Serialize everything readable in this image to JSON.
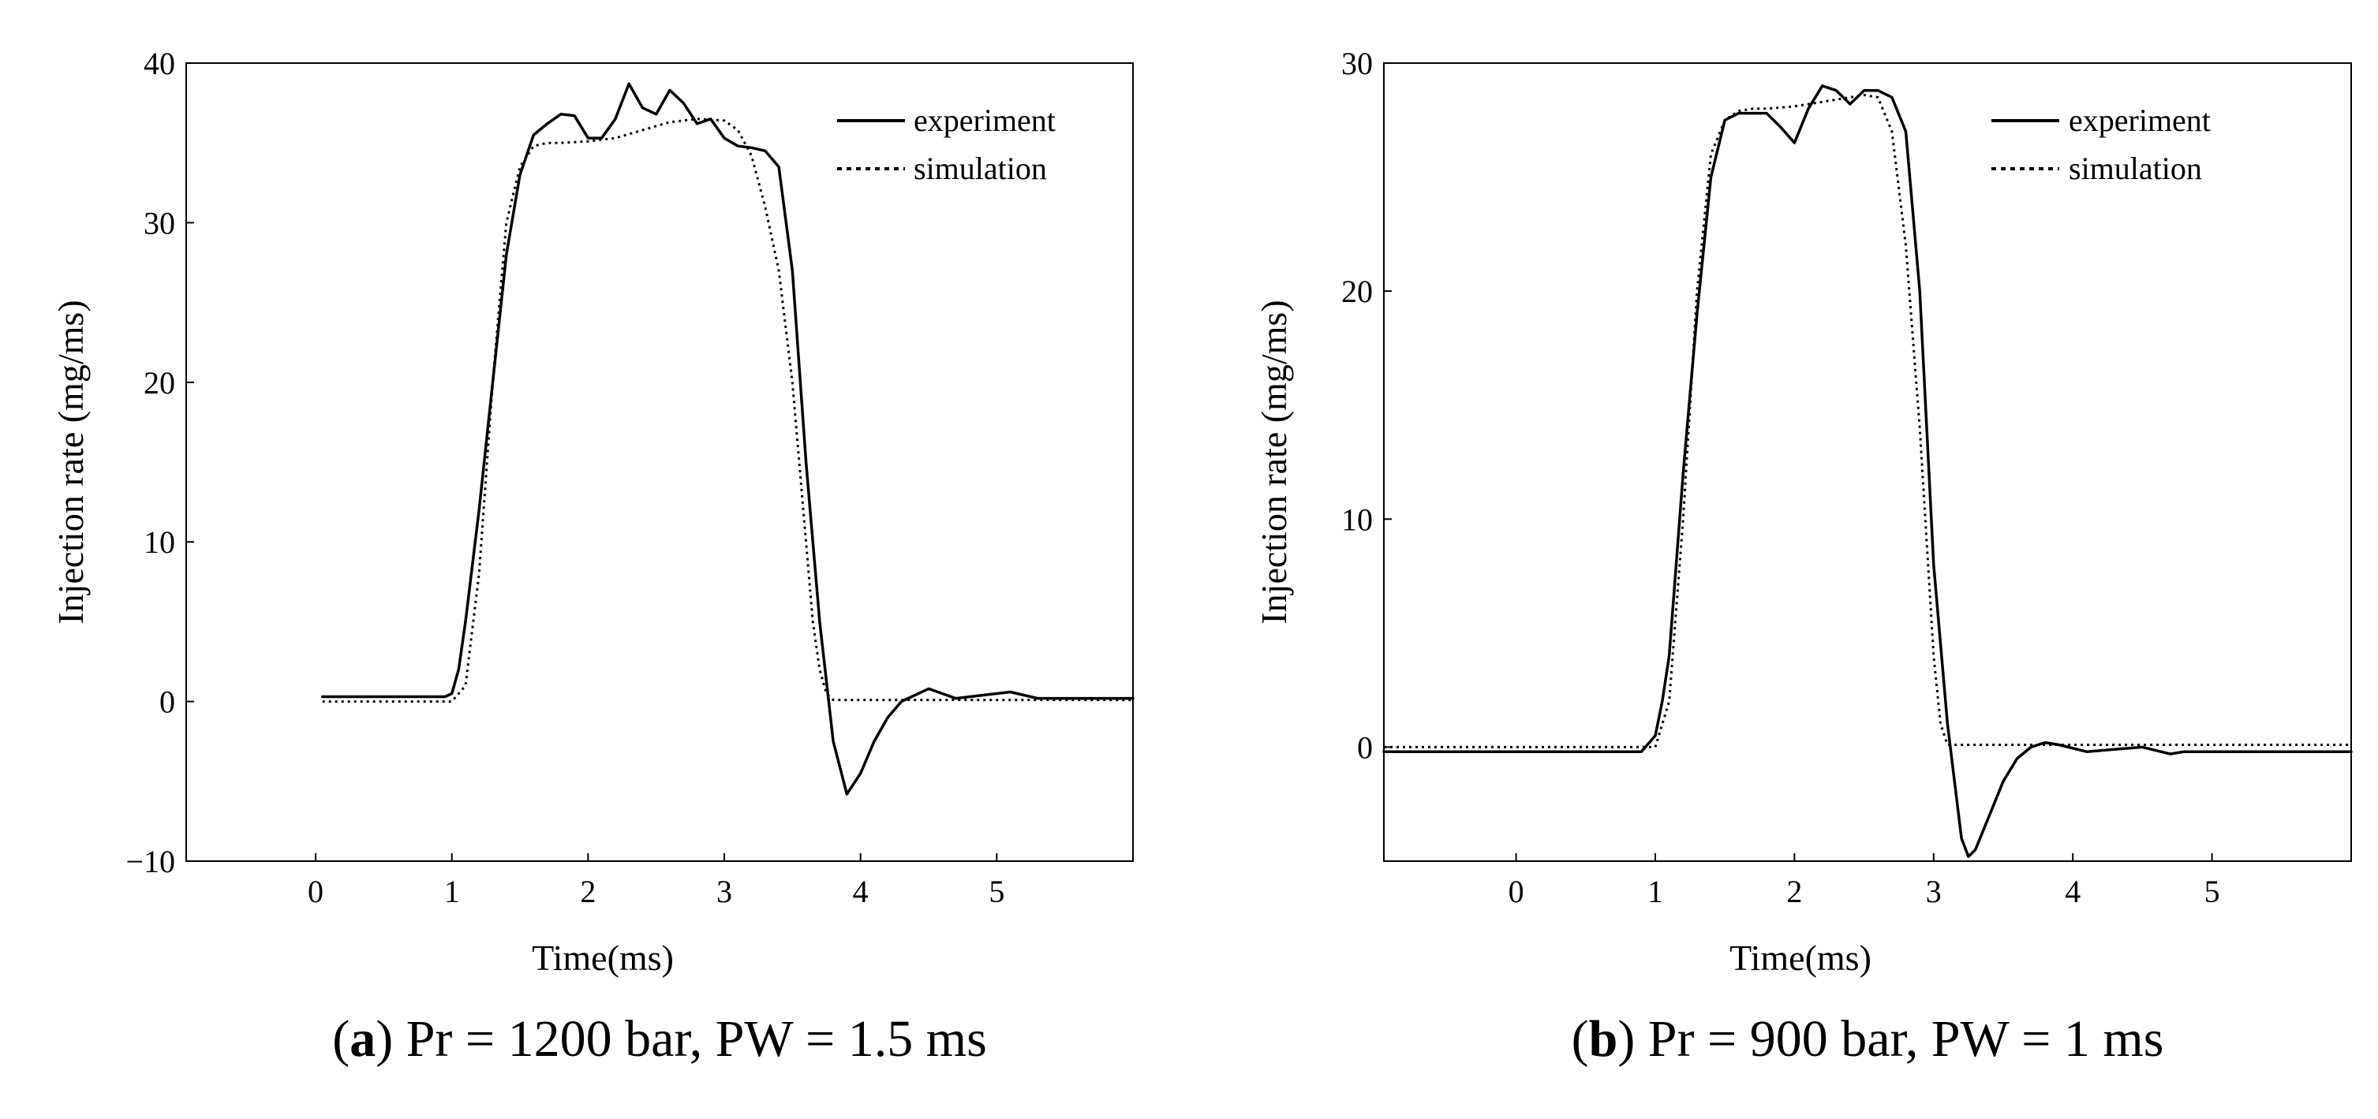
{
  "chart_data": [
    {
      "type": "line",
      "panel": "a",
      "caption": {
        "letter": "a",
        "text": "Pr = 1200 bar, PW = 1.5 ms"
      },
      "xlabel": "Time(ms)",
      "ylabel": "Injection rate (mg/ms)",
      "xlim": [
        -0.95,
        6.0
      ],
      "ylim": [
        -10,
        40
      ],
      "xticks": [
        0,
        1,
        2,
        3,
        4,
        5
      ],
      "xtick_labels": [
        "0",
        "1",
        "2",
        "3",
        "4",
        "5"
      ],
      "yticks": [
        -10,
        0,
        10,
        20,
        30,
        40
      ],
      "ytick_labels": [
        "−10",
        "0",
        "10",
        "20",
        "30",
        "40"
      ],
      "legend": {
        "position": "top-right",
        "entries": [
          "experiment",
          "simulation"
        ]
      },
      "series": [
        {
          "name": "experiment",
          "style": "solid",
          "x": [
            0.05,
            0.5,
            0.95,
            1.0,
            1.05,
            1.1,
            1.2,
            1.3,
            1.4,
            1.5,
            1.6,
            1.7,
            1.8,
            1.9,
            2.0,
            2.1,
            2.2,
            2.3,
            2.4,
            2.5,
            2.6,
            2.7,
            2.8,
            2.9,
            3.0,
            3.1,
            3.2,
            3.3,
            3.4,
            3.5,
            3.6,
            3.7,
            3.8,
            3.9,
            4.0,
            4.1,
            4.2,
            4.3,
            4.5,
            4.7,
            4.9,
            5.1,
            5.3,
            5.6,
            6.0
          ],
          "y": [
            0.3,
            0.3,
            0.3,
            0.5,
            2,
            5,
            12,
            20,
            28,
            33,
            35.5,
            36.2,
            36.8,
            36.7,
            35.3,
            35.3,
            36.5,
            38.7,
            37.2,
            36.8,
            38.3,
            37.5,
            36.2,
            36.5,
            35.3,
            34.8,
            34.7,
            34.5,
            33.5,
            27,
            15,
            5,
            -2.5,
            -5.8,
            -4.5,
            -2.5,
            -1.0,
            0.0,
            0.8,
            0.2,
            0.4,
            0.6,
            0.2,
            0.2,
            0.2
          ]
        },
        {
          "name": "simulation",
          "style": "dotted",
          "x": [
            0.05,
            0.5,
            1.0,
            1.1,
            1.2,
            1.3,
            1.4,
            1.5,
            1.6,
            1.7,
            1.8,
            2.0,
            2.2,
            2.4,
            2.6,
            2.8,
            3.0,
            3.1,
            3.2,
            3.3,
            3.4,
            3.5,
            3.6,
            3.65,
            3.7,
            3.75,
            3.8,
            4.0,
            5.0,
            6.0
          ],
          "y": [
            0.0,
            0.0,
            0.0,
            1,
            8,
            20,
            30,
            33.5,
            34.8,
            35.0,
            35.0,
            35.1,
            35.3,
            35.8,
            36.3,
            36.5,
            36.4,
            35.8,
            34.2,
            31,
            27,
            20,
            10,
            5,
            2,
            0.5,
            0.1,
            0.1,
            0.1,
            0.1
          ]
        }
      ]
    },
    {
      "type": "line",
      "panel": "b",
      "caption": {
        "letter": "b",
        "text": "Pr = 900 bar, PW = 1 ms"
      },
      "xlabel": "Time(ms)",
      "ylabel": "Injection rate (mg/ms)",
      "xlim": [
        -0.95,
        6.0
      ],
      "ylim": [
        -5,
        30
      ],
      "xticks": [
        0,
        1,
        2,
        3,
        4,
        5
      ],
      "xtick_labels": [
        "0",
        "1",
        "2",
        "3",
        "4",
        "5"
      ],
      "yticks": [
        0,
        10,
        20,
        30
      ],
      "ytick_labels": [
        "0",
        "10",
        "20",
        "30"
      ],
      "legend": {
        "position": "top-right",
        "entries": [
          "experiment",
          "simulation"
        ]
      },
      "series": [
        {
          "name": "experiment",
          "style": "solid",
          "x": [
            -0.95,
            0.5,
            0.9,
            1.0,
            1.05,
            1.1,
            1.2,
            1.3,
            1.4,
            1.5,
            1.6,
            1.7,
            1.8,
            1.9,
            2.0,
            2.1,
            2.2,
            2.3,
            2.4,
            2.5,
            2.6,
            2.7,
            2.8,
            2.9,
            3.0,
            3.1,
            3.2,
            3.25,
            3.3,
            3.4,
            3.5,
            3.6,
            3.7,
            3.8,
            3.9,
            4.1,
            4.3,
            4.5,
            4.7,
            4.8,
            5.0,
            5.5,
            6.0
          ],
          "y": [
            -0.2,
            -0.2,
            -0.2,
            0.5,
            2,
            4,
            12,
            19,
            25,
            27.5,
            27.8,
            27.8,
            27.8,
            27.2,
            26.5,
            28,
            29,
            28.8,
            28.2,
            28.8,
            28.8,
            28.5,
            27,
            20,
            8,
            1,
            -4,
            -4.8,
            -4.5,
            -3,
            -1.5,
            -0.5,
            0.0,
            0.2,
            0.1,
            -0.2,
            -0.1,
            0.0,
            -0.3,
            -0.2,
            -0.2,
            -0.2,
            -0.2
          ]
        },
        {
          "name": "simulation",
          "style": "dotted",
          "x": [
            -0.95,
            0.5,
            1.0,
            1.1,
            1.2,
            1.3,
            1.4,
            1.5,
            1.6,
            1.7,
            1.8,
            2.0,
            2.2,
            2.4,
            2.5,
            2.6,
            2.7,
            2.8,
            2.9,
            3.0,
            3.05,
            3.1,
            3.5,
            4.0,
            5.0,
            6.0
          ],
          "y": [
            0.0,
            0.0,
            0.0,
            2,
            10,
            20,
            26,
            27.5,
            27.9,
            28,
            28,
            28.1,
            28.3,
            28.5,
            28.6,
            28.5,
            27,
            22,
            14,
            4,
            1,
            0.1,
            0.1,
            0.1,
            0.1,
            0.1
          ]
        }
      ]
    }
  ]
}
